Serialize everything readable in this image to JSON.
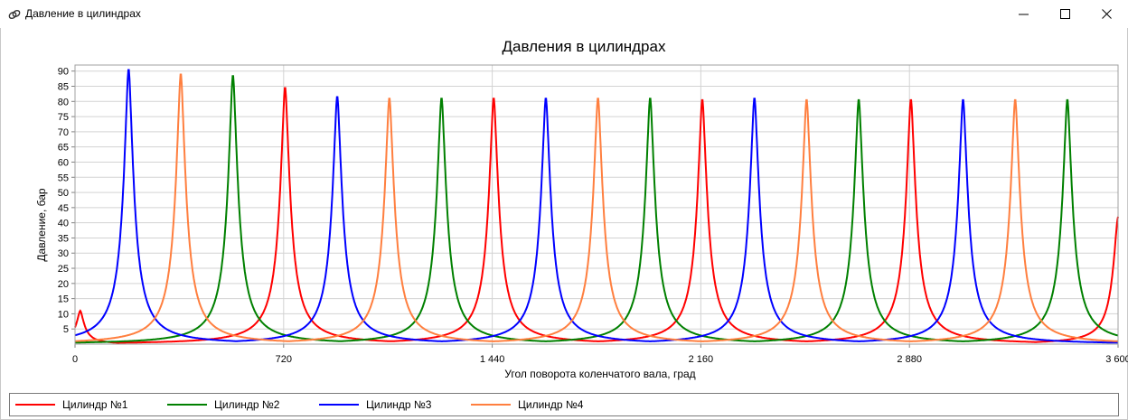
{
  "window": {
    "title": "Давление в цилиндрах",
    "controls": [
      "minimize-icon",
      "maximize-icon",
      "close-icon"
    ]
  },
  "chart_data": {
    "type": "line",
    "title": "Давления в цилиндрах",
    "xlabel": "Угол поворота коленчатого вала, град",
    "ylabel": "Давление, бар",
    "xlim": [
      0,
      3600
    ],
    "ylim": [
      0,
      92
    ],
    "x_ticks": [
      0,
      720,
      1440,
      2160,
      2880,
      3600
    ],
    "x_tick_labels": [
      "0",
      "720",
      "1 440",
      "2 160",
      "2 880",
      "3 600"
    ],
    "y_ticks": [
      5,
      10,
      15,
      20,
      25,
      30,
      35,
      40,
      45,
      50,
      55,
      60,
      65,
      70,
      75,
      80,
      85,
      90
    ],
    "grid": true,
    "legend_position": "bottom",
    "baseline_pressure": 0.3,
    "series": [
      {
        "name": "Цилиндр №1",
        "color": "#ff0000",
        "peaks": [
          [
            18,
            11
          ],
          [
            725,
            85
          ],
          [
            1445,
            81.5
          ],
          [
            2165,
            81
          ],
          [
            2885,
            81
          ],
          [
            3600,
            42
          ]
        ]
      },
      {
        "name": "Цилиндр №2",
        "color": "#008000",
        "peaks": [
          [
            545,
            89
          ],
          [
            1265,
            81.5
          ],
          [
            1985,
            81.5
          ],
          [
            2705,
            81
          ],
          [
            3425,
            81
          ]
        ]
      },
      {
        "name": "Цилиндр №3",
        "color": "#0000ff",
        "peaks": [
          [
            185,
            91
          ],
          [
            905,
            82
          ],
          [
            1625,
            81.5
          ],
          [
            2345,
            81.5
          ],
          [
            3065,
            81
          ]
        ]
      },
      {
        "name": "Цилиндр №4",
        "color": "#ff7f3f",
        "peaks": [
          [
            365,
            89.5
          ],
          [
            1085,
            81.5
          ],
          [
            1805,
            81.5
          ],
          [
            2525,
            81
          ],
          [
            3245,
            81
          ]
        ]
      }
    ]
  }
}
